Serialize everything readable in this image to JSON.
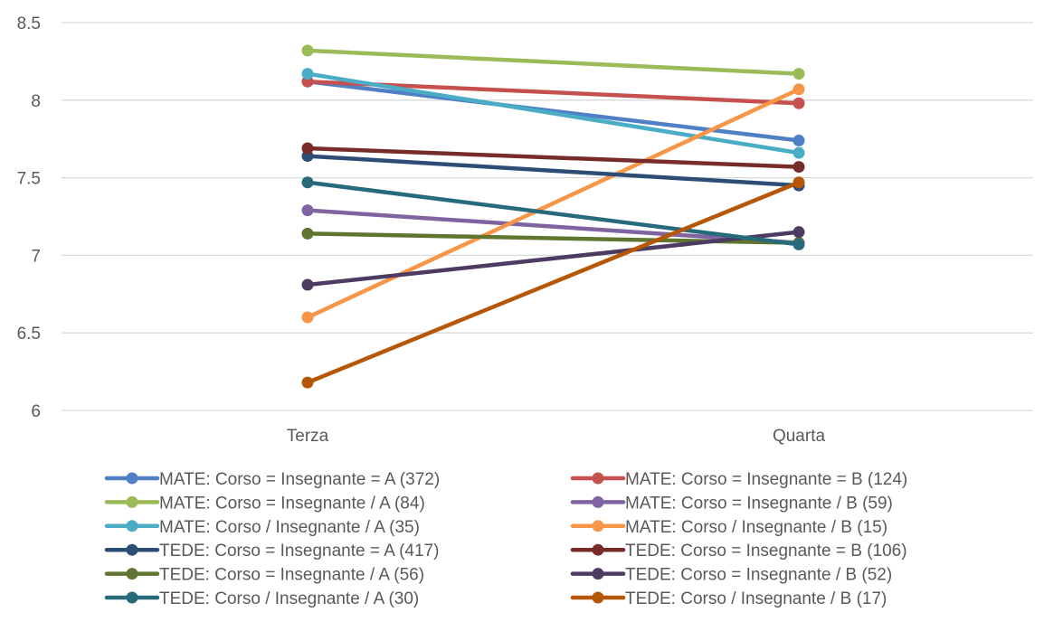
{
  "chart_data": {
    "type": "line",
    "categories": [
      "Terza",
      "Quarta"
    ],
    "ylim": [
      6,
      8.5
    ],
    "yticks": [
      6,
      6.5,
      7,
      7.5,
      8,
      8.5
    ],
    "ytick_labels": [
      "6",
      "6.5",
      "7",
      "7.5",
      "8",
      "8.5"
    ],
    "grid": true,
    "legend_position": "bottom",
    "series": [
      {
        "name": "MATE: Corso = Insegnante = A (372)",
        "color": "#4f7fc4",
        "values": [
          8.12,
          7.74
        ]
      },
      {
        "name": "MATE: Corso = Insegnante = B (124)",
        "color": "#c6504e",
        "values": [
          8.12,
          7.98
        ]
      },
      {
        "name": "MATE: Corso = Insegnante / A (84)",
        "color": "#9bbb59",
        "values": [
          8.32,
          8.17
        ]
      },
      {
        "name": "MATE: Corso = Insegnante / B (59)",
        "color": "#8064a2",
        "values": [
          7.29,
          7.08
        ]
      },
      {
        "name": "MATE: Corso / Insegnante / A (35)",
        "color": "#4bacc6",
        "values": [
          8.17,
          7.66
        ]
      },
      {
        "name": "MATE: Corso / Insegnante / B (15)",
        "color": "#f79646",
        "values": [
          6.6,
          8.07
        ]
      },
      {
        "name": "TEDE: Corso = Insegnante = A (417)",
        "color": "#2c4d75",
        "values": [
          7.64,
          7.45
        ]
      },
      {
        "name": "TEDE: Corso = Insegnante = B (106)",
        "color": "#772c2a",
        "values": [
          7.69,
          7.57
        ]
      },
      {
        "name": "TEDE: Corso = Insegnante / A (56)",
        "color": "#5f7530",
        "values": [
          7.14,
          7.08
        ]
      },
      {
        "name": "TEDE: Corso = Insegnante / B (52)",
        "color": "#4d3b62",
        "values": [
          6.81,
          7.15
        ]
      },
      {
        "name": "TEDE: Corso / Insegnante / A (30)",
        "color": "#276a7c",
        "values": [
          7.47,
          7.07
        ]
      },
      {
        "name": "TEDE: Corso / Insegnante / B (17)",
        "color": "#b65708",
        "values": [
          6.18,
          7.47
        ]
      }
    ]
  }
}
